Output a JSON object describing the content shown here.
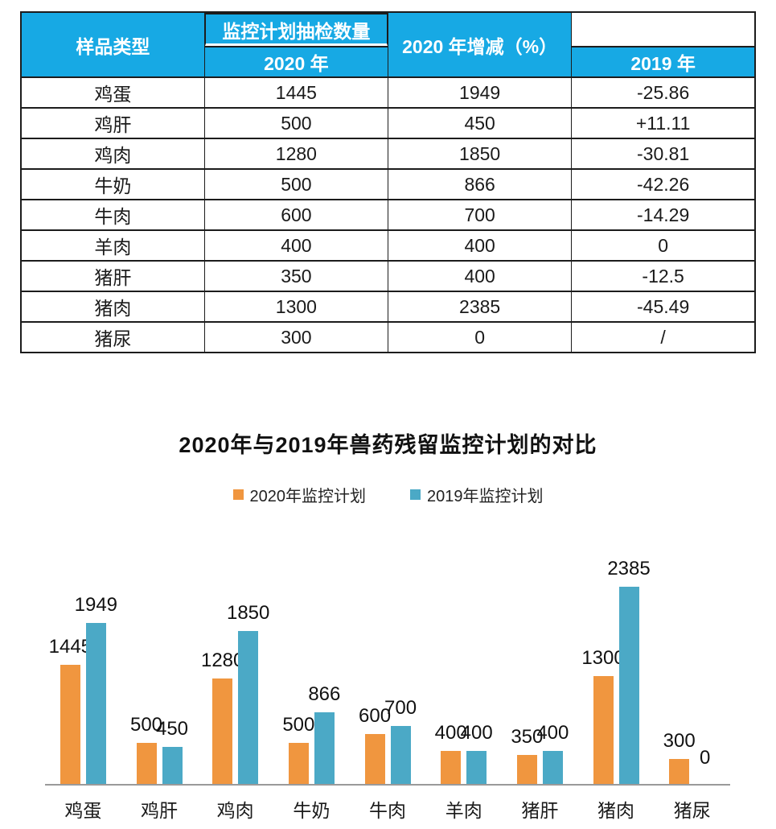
{
  "table": {
    "header_bg": "#17A9E4",
    "header": {
      "sample_type": "样品类型",
      "group": "监控计划抽检数量",
      "year_2020": "2020 年",
      "year_2019": "2019 年",
      "change": "2020 年增减（%）"
    },
    "rows": [
      {
        "type": "鸡蛋",
        "y2020": "1445",
        "y2019": "1949",
        "change": "-25.86"
      },
      {
        "type": "鸡肝",
        "y2020": "500",
        "y2019": "450",
        "change": "+11.11"
      },
      {
        "type": "鸡肉",
        "y2020": "1280",
        "y2019": "1850",
        "change": "-30.81"
      },
      {
        "type": "牛奶",
        "y2020": "500",
        "y2019": "866",
        "change": "-42.26"
      },
      {
        "type": "牛肉",
        "y2020": "600",
        "y2019": "700",
        "change": "-14.29"
      },
      {
        "type": "羊肉",
        "y2020": "400",
        "y2019": "400",
        "change": "0"
      },
      {
        "type": "猪肝",
        "y2020": "350",
        "y2019": "400",
        "change": "-12.5"
      },
      {
        "type": "猪肉",
        "y2020": "1300",
        "y2019": "2385",
        "change": "-45.49"
      },
      {
        "type": "猪尿",
        "y2020": "300",
        "y2019": "0",
        "change": "/"
      }
    ]
  },
  "chart": {
    "title": "2020年与2019年兽药残留监控计划的对比"
  },
  "chart_data": {
    "type": "bar",
    "title": "2020年与2019年兽药残留监控计划的对比",
    "categories": [
      "鸡蛋",
      "鸡肝",
      "鸡肉",
      "牛奶",
      "牛肉",
      "羊肉",
      "猪肝",
      "猪肉",
      "猪尿"
    ],
    "series": [
      {
        "name": "2020年监控计划",
        "color": "#F0963F",
        "values": [
          1445,
          500,
          1280,
          500,
          600,
          400,
          350,
          1300,
          300
        ]
      },
      {
        "name": "2019年监控计划",
        "color": "#4BA9C6",
        "values": [
          1949,
          450,
          1850,
          866,
          700,
          400,
          400,
          2385,
          0
        ]
      }
    ],
    "ylim": [
      0,
      2385
    ],
    "grid": false,
    "legend_position": "top",
    "data_labels": true,
    "axis_line_color": "#9a9a9a"
  }
}
